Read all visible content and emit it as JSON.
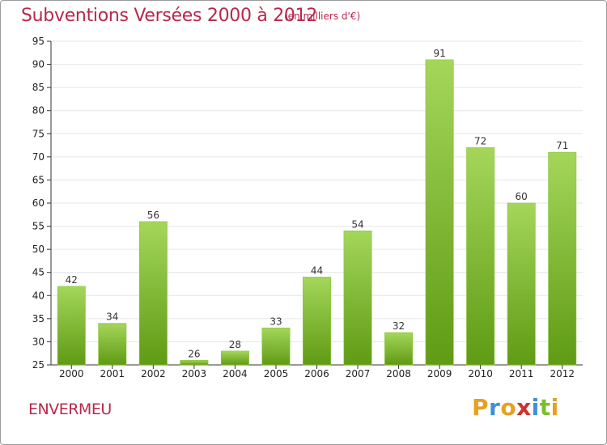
{
  "title": "Subventions Versées 2000 à 2012",
  "subtitle": "(en milliers d'€)",
  "commune": "ENVERMEU",
  "logo": {
    "letters": [
      "P",
      "r",
      "o",
      "x",
      "i",
      "t",
      "i"
    ],
    "colors": [
      "#e8a020",
      "#3f8fd6",
      "#e8a020",
      "#d03030",
      "#3f8fd6",
      "#7bbf2a",
      "#e8a020"
    ]
  },
  "colors": {
    "accent": "#b8284c",
    "bar_light": "#a4d65a",
    "bar_dark": "#5f9b14",
    "grid": "#e6e6e6",
    "axis": "#333333"
  },
  "chart_data": {
    "type": "bar",
    "categories": [
      "2000",
      "2001",
      "2002",
      "2003",
      "2004",
      "2005",
      "2006",
      "2007",
      "2008",
      "2009",
      "2010",
      "2011",
      "2012"
    ],
    "values": [
      42,
      34,
      56,
      26,
      28,
      33,
      44,
      54,
      32,
      91,
      72,
      60,
      71
    ],
    "title": "Subventions Versées 2000 à 2012",
    "xlabel": "",
    "ylabel": "",
    "ylim": [
      25,
      95
    ],
    "yticks": [
      25,
      30,
      35,
      40,
      45,
      50,
      55,
      60,
      65,
      70,
      75,
      80,
      85,
      90,
      95
    ],
    "grid": true,
    "data_labels": true
  }
}
